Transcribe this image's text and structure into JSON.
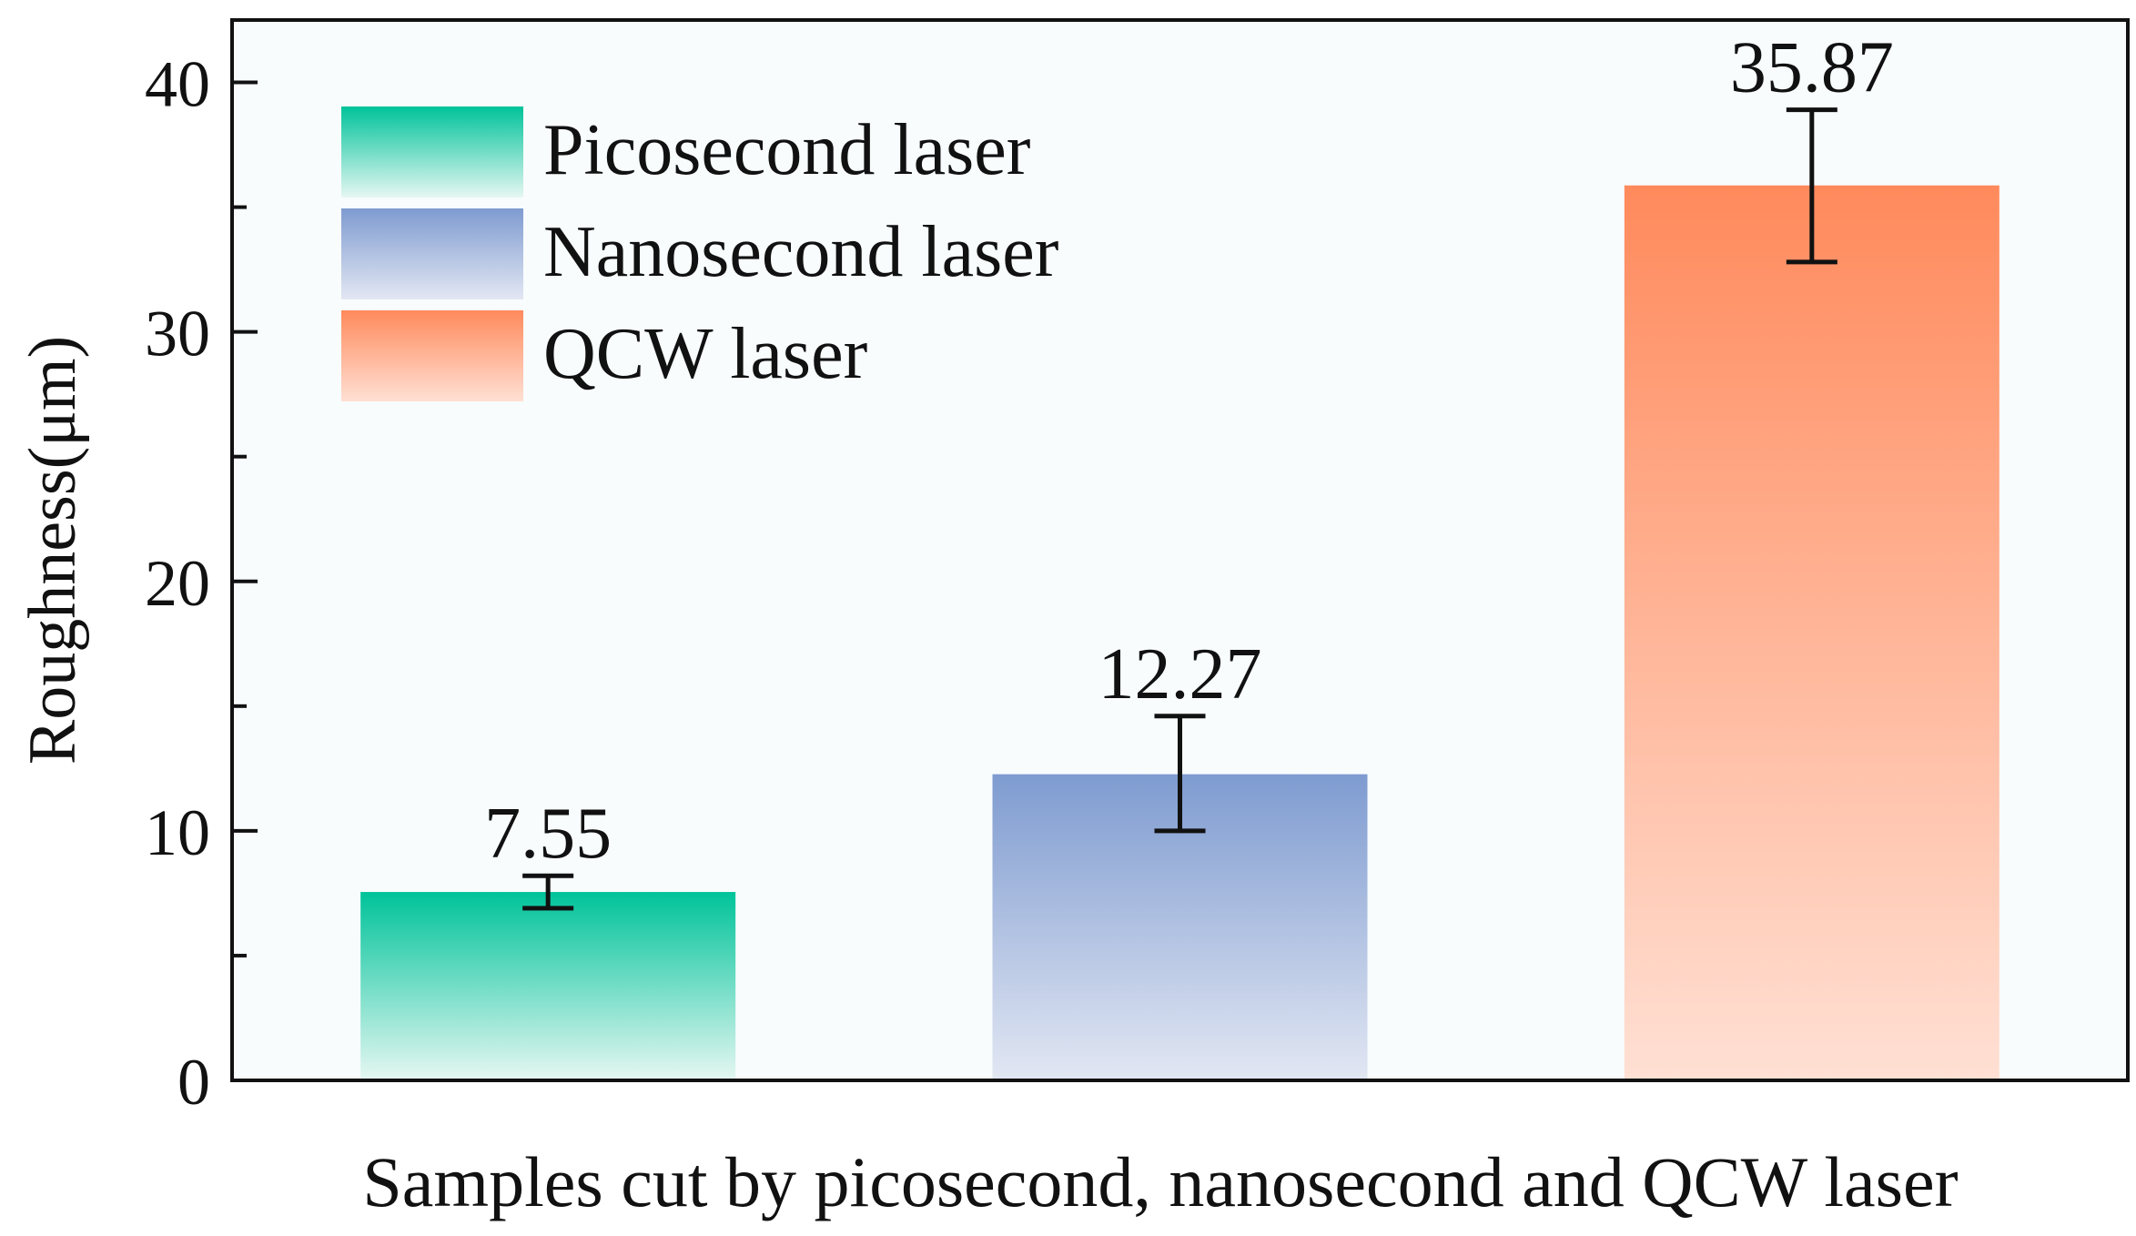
{
  "chart_data": {
    "type": "bar",
    "title": "",
    "xlabel": "Samples cut by picosecond, nanosecond and QCW laser",
    "ylabel": "Roughness(μm)",
    "ylim": [
      0,
      42.5
    ],
    "y_ticks": [
      0,
      10,
      20,
      30,
      40
    ],
    "y_minor_step": 5,
    "grid": false,
    "legend_position": "top-left",
    "categories": [
      "Picosecond laser",
      "Nanosecond laser",
      "QCW laser"
    ],
    "series": [
      {
        "name": "Roughness",
        "values": [
          7.55,
          12.27,
          35.87
        ],
        "value_labels": [
          "7.55",
          "12.27",
          "35.87"
        ],
        "error_low": [
          6.9,
          10.0,
          32.8
        ],
        "error_high": [
          8.2,
          14.6,
          38.9
        ],
        "colors": [
          "#00c39a",
          "#7e9bd0",
          "#ff8a5c"
        ],
        "colors_light": [
          "#e6f7f2",
          "#e2e7f3",
          "#ffe0d4"
        ]
      }
    ],
    "legend": [
      "Picosecond laser",
      "Nanosecond laser",
      "QCW laser"
    ],
    "plot_background": "#f8fcfc"
  }
}
